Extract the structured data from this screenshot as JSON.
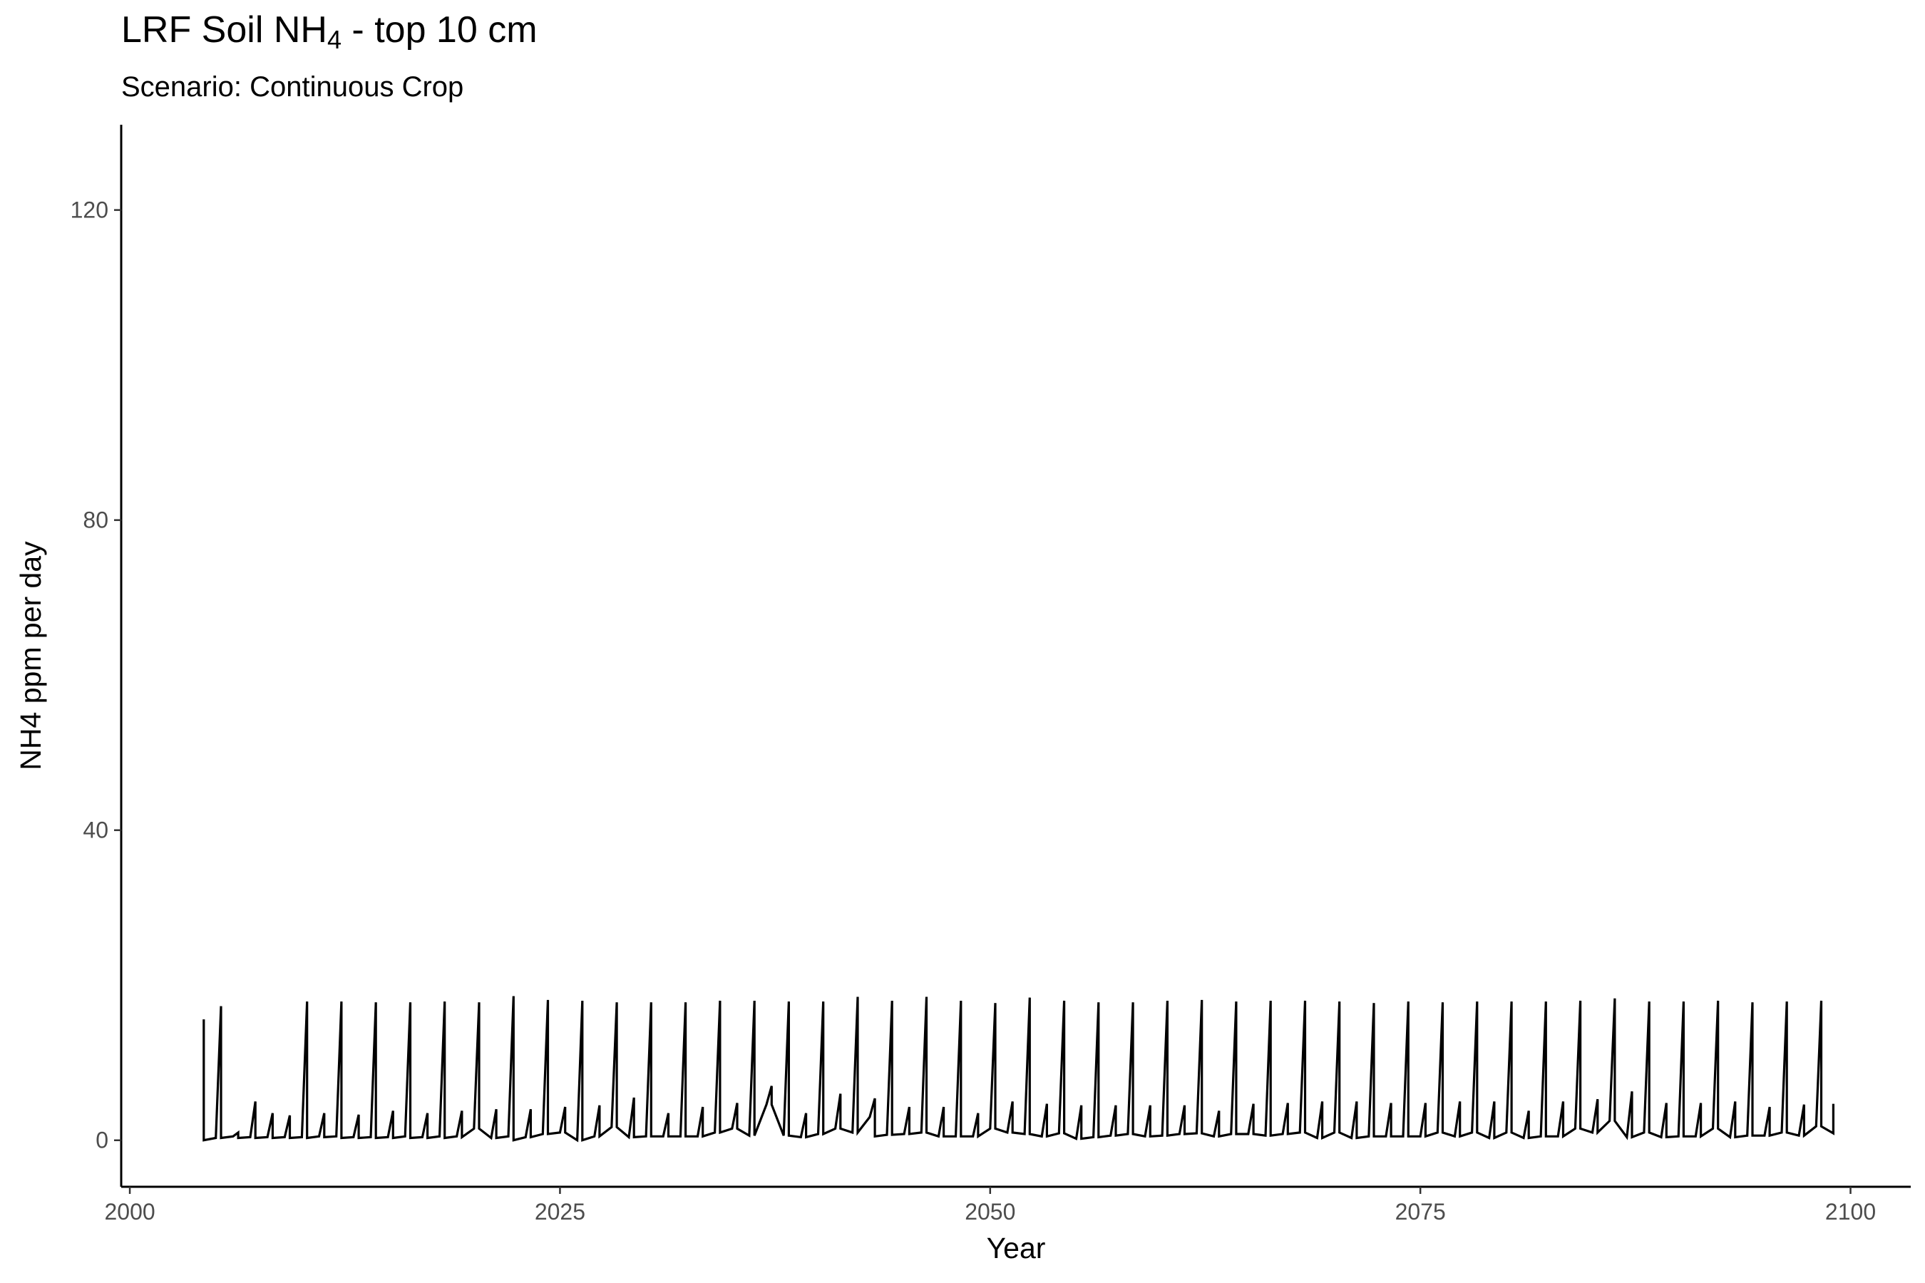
{
  "title": {
    "prefix": "LRF Soil NH",
    "subscript": "4",
    "suffix": " - top 10 cm"
  },
  "subtitle": "Scenario: Continuous Crop",
  "chart_data": {
    "type": "line",
    "title": "LRF Soil NH4 - top 10 cm",
    "subtitle": "Scenario: Continuous Crop",
    "xlabel": "Year",
    "ylabel": "NH4 ppm per day",
    "xlim": [
      1999.5,
      2103.5
    ],
    "ylim": [
      -6,
      131
    ],
    "x_ticks": [
      2000,
      2025,
      2050,
      2075,
      2100
    ],
    "y_ticks": [
      0,
      40,
      80,
      120
    ],
    "grid": false,
    "line_color": "#000000",
    "series": [
      {
        "x": [
          2004.3,
          2004.3,
          2005.0,
          2005.3,
          2005.3,
          2006.0,
          2006.3,
          2006.3,
          2007.0,
          2007.3,
          2007.3,
          2008.0,
          2008.3,
          2008.3,
          2009.0,
          2009.3,
          2009.3,
          2010.0,
          2010.3,
          2010.3,
          2011.0,
          2011.3,
          2011.3,
          2012.0,
          2012.3,
          2012.3,
          2013.0,
          2013.3,
          2013.3,
          2014.0,
          2014.3,
          2014.3,
          2015.0,
          2015.3,
          2015.3,
          2016.0,
          2016.3,
          2016.3,
          2017.0,
          2017.3,
          2017.3,
          2018.0,
          2018.3,
          2018.3,
          2019.0,
          2019.3,
          2019.3,
          2020.0,
          2020.3,
          2020.3,
          2021.0,
          2021.3,
          2021.3,
          2022.0,
          2022.3,
          2022.3,
          2023.0,
          2023.3,
          2023.3,
          2024.0,
          2024.3,
          2024.3,
          2025.0,
          2025.3,
          2025.3,
          2026.0,
          2026.3,
          2026.3,
          2027.0,
          2027.3,
          2027.3,
          2028.0,
          2028.3,
          2028.3,
          2029.0,
          2029.3,
          2029.3,
          2030.0,
          2030.3,
          2030.3,
          2031.0,
          2031.3,
          2031.3,
          2032.0,
          2032.3,
          2032.3,
          2033.0,
          2033.3,
          2033.3,
          2034.0,
          2034.3,
          2034.3,
          2035.0,
          2035.3,
          2035.3,
          2036.0,
          2036.3,
          2036.3,
          2037.0,
          2037.3,
          2037.3,
          2038.0,
          2038.3,
          2038.3,
          2039.0,
          2039.3,
          2039.3,
          2040.0,
          2040.3,
          2040.3,
          2041.0,
          2041.3,
          2041.3,
          2042.0,
          2042.3,
          2042.3,
          2043.0,
          2043.3,
          2043.3,
          2044.0,
          2044.3,
          2044.3,
          2045.0,
          2045.3,
          2045.3,
          2046.0,
          2046.3,
          2046.3,
          2047.0,
          2047.3,
          2047.3,
          2048.0,
          2048.3,
          2048.3,
          2049.0,
          2049.3,
          2049.3,
          2050.0,
          2050.3,
          2050.3,
          2051.0,
          2051.3,
          2051.3,
          2052.0,
          2052.3,
          2052.3,
          2053.0,
          2053.3,
          2053.3,
          2054.0,
          2054.3,
          2054.3,
          2055.0,
          2055.3,
          2055.3,
          2056.0,
          2056.3,
          2056.3,
          2057.0,
          2057.3,
          2057.3,
          2058.0,
          2058.3,
          2058.3,
          2059.0,
          2059.3,
          2059.3,
          2060.0,
          2060.3,
          2060.3,
          2061.0,
          2061.3,
          2061.3,
          2062.0,
          2062.3,
          2062.3,
          2063.0,
          2063.3,
          2063.3,
          2064.0,
          2064.3,
          2064.3,
          2065.0,
          2065.3,
          2065.3,
          2066.0,
          2066.3,
          2066.3,
          2067.0,
          2067.3,
          2067.3,
          2068.0,
          2068.3,
          2068.3,
          2069.0,
          2069.3,
          2069.3,
          2070.0,
          2070.3,
          2070.3,
          2071.0,
          2071.3,
          2071.3,
          2072.0,
          2072.3,
          2072.3,
          2073.0,
          2073.3,
          2073.3,
          2074.0,
          2074.3,
          2074.3,
          2075.0,
          2075.3,
          2075.3,
          2076.0,
          2076.3,
          2076.3,
          2077.0,
          2077.3,
          2077.3,
          2078.0,
          2078.3,
          2078.3,
          2079.0,
          2079.3,
          2079.3,
          2080.0,
          2080.3,
          2080.3,
          2081.0,
          2081.3,
          2081.3,
          2082.0,
          2082.3,
          2082.3,
          2083.0,
          2083.3,
          2083.3,
          2084.0,
          2084.3,
          2084.3,
          2085.0,
          2085.3,
          2085.3,
          2086.0,
          2086.3,
          2086.3,
          2087.0,
          2087.3,
          2087.3,
          2088.0,
          2088.3,
          2088.3,
          2089.0,
          2089.3,
          2089.3,
          2090.0,
          2090.3,
          2090.3,
          2091.0,
          2091.3,
          2091.3,
          2092.0,
          2092.3,
          2092.3,
          2093.0,
          2093.3,
          2093.3,
          2094.0,
          2094.3,
          2094.3,
          2095.0,
          2095.3,
          2095.3,
          2096.0,
          2096.3,
          2096.3,
          2097.0,
          2097.3,
          2097.3,
          2098.0,
          2098.3,
          2098.3,
          2099.0,
          2099.0
        ],
        "y": [
          15.6,
          0.0,
          0.3,
          17.3,
          0.3,
          0.5,
          1.0,
          0.3,
          0.4,
          5.0,
          0.3,
          0.4,
          3.5,
          0.3,
          0.4,
          3.2,
          0.3,
          0.4,
          17.9,
          0.3,
          0.5,
          3.5,
          0.4,
          0.5,
          17.9,
          0.3,
          0.4,
          3.3,
          0.3,
          0.4,
          17.8,
          0.3,
          0.4,
          3.8,
          0.3,
          0.5,
          17.8,
          0.3,
          0.4,
          3.5,
          0.3,
          0.5,
          17.9,
          0.3,
          0.5,
          3.8,
          0.4,
          1.5,
          17.8,
          1.5,
          0.3,
          4.0,
          0.3,
          0.5,
          18.6,
          0.0,
          0.4,
          4.0,
          0.4,
          0.8,
          18.1,
          0.8,
          1.0,
          4.3,
          1.0,
          0.0,
          18.0,
          0.0,
          0.5,
          4.5,
          0.5,
          1.7,
          17.8,
          1.7,
          0.4,
          5.5,
          0.4,
          0.5,
          17.8,
          0.5,
          0.5,
          3.5,
          0.5,
          0.5,
          17.8,
          0.5,
          0.5,
          4.3,
          0.5,
          1.0,
          18.0,
          1.0,
          1.5,
          4.8,
          1.5,
          0.6,
          18.0,
          0.6,
          4.6,
          7.0,
          4.6,
          0.6,
          17.9,
          0.6,
          0.4,
          3.5,
          0.4,
          0.8,
          17.9,
          0.8,
          1.5,
          6.0,
          1.5,
          1.0,
          18.5,
          1.0,
          3.0,
          5.4,
          0.5,
          0.7,
          18.0,
          0.7,
          0.8,
          4.3,
          0.8,
          1.0,
          18.5,
          1.0,
          0.5,
          4.3,
          0.5,
          0.5,
          18.0,
          0.5,
          0.5,
          3.5,
          0.5,
          1.5,
          17.7,
          1.5,
          1.0,
          5.0,
          1.0,
          0.8,
          18.4,
          0.8,
          0.5,
          4.7,
          0.5,
          0.9,
          18.0,
          0.9,
          0.2,
          4.5,
          0.2,
          0.4,
          17.8,
          0.4,
          0.6,
          4.5,
          0.6,
          0.8,
          17.8,
          0.8,
          0.5,
          4.5,
          0.5,
          0.6,
          18.0,
          0.6,
          0.8,
          4.5,
          0.8,
          0.9,
          18.1,
          0.9,
          0.5,
          3.8,
          0.5,
          0.8,
          17.9,
          0.8,
          0.8,
          4.7,
          0.8,
          0.6,
          18.0,
          0.6,
          0.8,
          4.8,
          0.8,
          1.0,
          18.0,
          1.0,
          0.3,
          5.0,
          0.3,
          1.0,
          17.9,
          1.0,
          0.3,
          5.0,
          0.3,
          0.5,
          17.7,
          0.5,
          0.5,
          4.8,
          0.5,
          0.5,
          17.9,
          0.5,
          0.5,
          4.8,
          0.5,
          1.0,
          17.8,
          1.0,
          0.5,
          5.0,
          0.5,
          1.0,
          17.9,
          1.0,
          0.3,
          5.0,
          0.3,
          1.0,
          17.9,
          1.0,
          0.3,
          3.8,
          0.3,
          0.5,
          17.9,
          0.5,
          0.5,
          5.0,
          0.5,
          1.5,
          18.0,
          1.5,
          1.0,
          5.3,
          1.0,
          2.5,
          18.3,
          2.5,
          0.4,
          6.3,
          0.4,
          1.0,
          17.9,
          1.0,
          0.4,
          4.8,
          0.4,
          0.5,
          17.9,
          0.5,
          0.5,
          4.8,
          0.5,
          1.5,
          18.0,
          1.5,
          0.4,
          5.0,
          0.4,
          0.6,
          17.8,
          0.6,
          0.6,
          4.3,
          0.6,
          1.0,
          17.9,
          1.0,
          0.6,
          4.6,
          0.6,
          1.8,
          18.0,
          1.8,
          0.9,
          4.7
        ]
      }
    ]
  }
}
